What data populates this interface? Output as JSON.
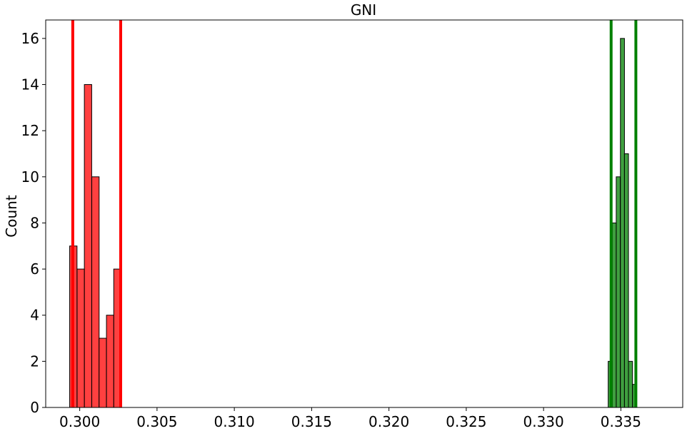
{
  "chart_data": {
    "type": "histogram",
    "title": "GNI",
    "xlabel": "",
    "ylabel": "Count",
    "xlim": [
      0.2978,
      0.339
    ],
    "ylim": [
      0,
      16.8
    ],
    "x_ticks": [
      0.3,
      0.305,
      0.31,
      0.315,
      0.32,
      0.325,
      0.33,
      0.335
    ],
    "x_tick_labels": [
      "0.300",
      "0.305",
      "0.310",
      "0.315",
      "0.320",
      "0.325",
      "0.330",
      "0.335"
    ],
    "y_ticks": [
      0,
      2,
      4,
      6,
      8,
      10,
      12,
      14,
      16
    ],
    "y_tick_labels": [
      "0",
      "2",
      "4",
      "6",
      "8",
      "10",
      "12",
      "14",
      "16"
    ],
    "grid": false,
    "series": [
      {
        "color": "#ff0000",
        "bin_width": 0.000475,
        "bins": [
          {
            "start": 0.29935,
            "count": 7
          },
          {
            "start": 0.29983,
            "count": 6
          },
          {
            "start": 0.3003,
            "count": 14
          },
          {
            "start": 0.30078,
            "count": 10
          },
          {
            "start": 0.30125,
            "count": 3
          },
          {
            "start": 0.30173,
            "count": 4
          },
          {
            "start": 0.3022,
            "count": 6
          }
        ],
        "vlines": [
          0.29955,
          0.30265
        ]
      },
      {
        "color": "#008000",
        "bin_width": 0.000262,
        "bins": [
          {
            "start": 0.33418,
            "count": 2
          },
          {
            "start": 0.33444,
            "count": 8
          },
          {
            "start": 0.3347,
            "count": 10
          },
          {
            "start": 0.33497,
            "count": 16
          },
          {
            "start": 0.33523,
            "count": 11
          },
          {
            "start": 0.33549,
            "count": 2
          },
          {
            "start": 0.33575,
            "count": 1
          }
        ],
        "vlines": [
          0.33437,
          0.33597
        ]
      }
    ]
  }
}
